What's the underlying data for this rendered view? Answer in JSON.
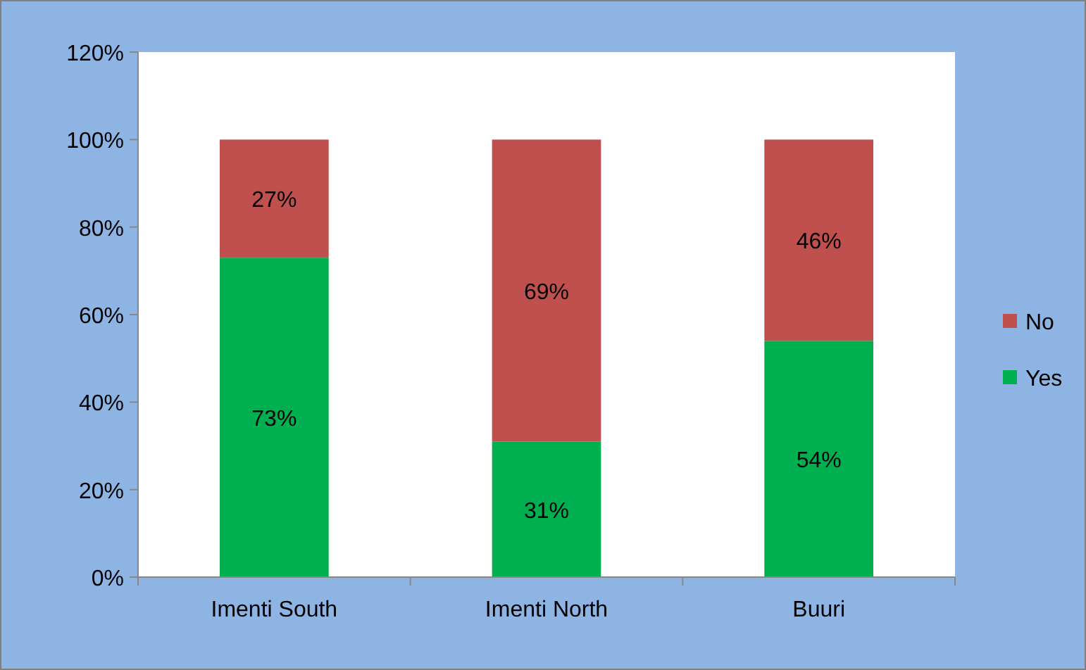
{
  "chart_data": {
    "type": "bar",
    "stacked": true,
    "categories": [
      "Imenti South",
      "Imenti North",
      "Buuri"
    ],
    "series": [
      {
        "name": "Yes",
        "color": "#00b050",
        "values": [
          73,
          31,
          54
        ],
        "value_labels": [
          "73%",
          "31%",
          "54%"
        ]
      },
      {
        "name": "No",
        "color": "#c0504d",
        "values": [
          27,
          69,
          46
        ],
        "value_labels": [
          "27%",
          "69%",
          "46%"
        ]
      }
    ],
    "ylim": [
      0,
      120
    ],
    "yticks": [
      {
        "value": 0,
        "label": "0%"
      },
      {
        "value": 20,
        "label": "20%"
      },
      {
        "value": 40,
        "label": "40%"
      },
      {
        "value": 60,
        "label": "60%"
      },
      {
        "value": 80,
        "label": "80%"
      },
      {
        "value": 100,
        "label": "100%"
      },
      {
        "value": 120,
        "label": "120%"
      }
    ],
    "grid": false,
    "legend": "right"
  }
}
